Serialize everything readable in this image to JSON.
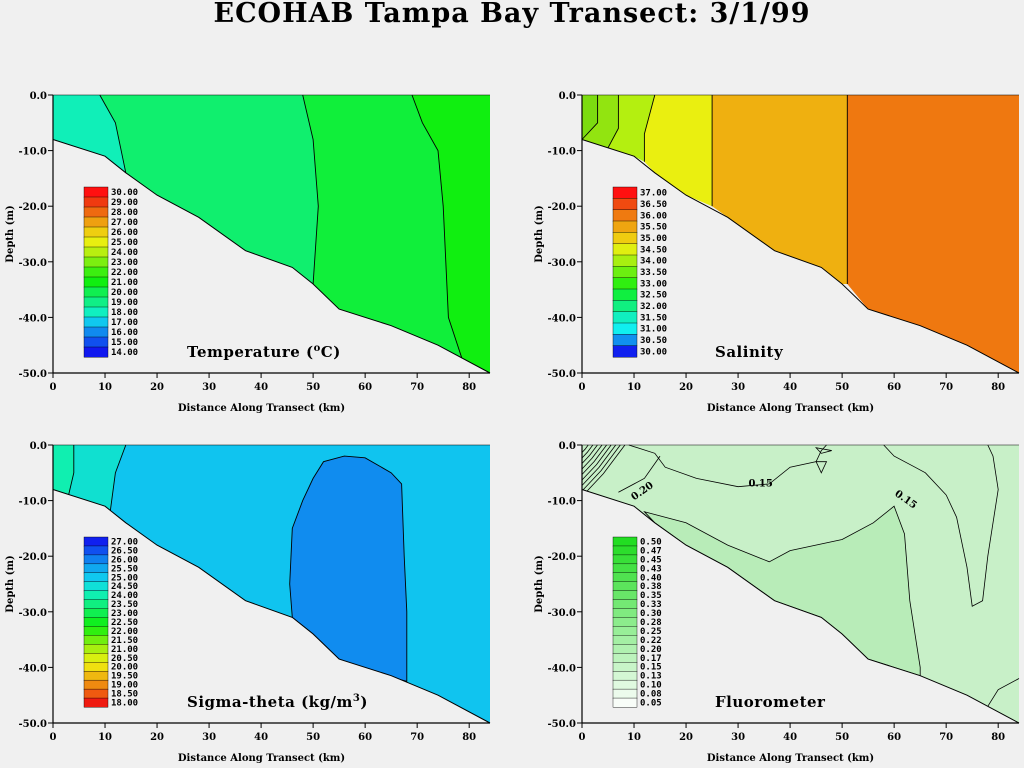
{
  "title": "ECOHAB Tampa Bay Transect: 3/1/99",
  "chart_data": [
    {
      "type": "heatmap",
      "title": "Temperature (oC)",
      "title_text": "Temperature (",
      "title_sup": "o",
      "title_tail": "C)",
      "xlabel": "Distance Along Transect (km)",
      "ylabel": "Depth (m)",
      "xlim": [
        0,
        84
      ],
      "ylim": [
        -50,
        0
      ],
      "x_ticks": [
        "0",
        "10",
        "20",
        "30",
        "40",
        "50",
        "60",
        "70",
        "80"
      ],
      "y_ticks": [
        "0.0",
        "-10.0",
        "-20.0",
        "-30.0",
        "-40.0",
        "-50.0"
      ],
      "levels": [
        "30.00",
        "29.00",
        "28.00",
        "27.00",
        "26.00",
        "25.00",
        "24.00",
        "23.00",
        "22.00",
        "21.00",
        "20.00",
        "19.00",
        "18.00",
        "17.00",
        "16.00",
        "15.00",
        "14.00"
      ],
      "level_colors": [
        "#ff1010",
        "#f03a10",
        "#ef6a10",
        "#efa010",
        "#efce10",
        "#e8ef10",
        "#b8ef10",
        "#7cef10",
        "#3cef10",
        "#10ef10",
        "#10ef50",
        "#10ef86",
        "#10efc0",
        "#10c8ef",
        "#108aef",
        "#1050ef",
        "#1018ef"
      ],
      "regions": [
        {
          "level": "19.00",
          "color": "#10efb8",
          "x_range": [
            0,
            14
          ]
        },
        {
          "level": "20.00",
          "color": "#10ef6e",
          "x_range": [
            14,
            50
          ]
        },
        {
          "level": "21.00",
          "color": "#10ef3a",
          "x_range": [
            50,
            73
          ]
        },
        {
          "level": "22.00",
          "color": "#10ef10",
          "x_range": [
            73,
            84
          ]
        }
      ]
    },
    {
      "type": "heatmap",
      "title": "Salinity",
      "xlabel": "Distance Along Transect (km)",
      "ylabel": "Depth (m)",
      "xlim": [
        0,
        84
      ],
      "ylim": [
        -50,
        0
      ],
      "x_ticks": [
        "0",
        "10",
        "20",
        "30",
        "40",
        "50",
        "60",
        "70",
        "80"
      ],
      "y_ticks": [
        "0.0",
        "-10.0",
        "-20.0",
        "-30.0",
        "-40.0",
        "-50.0"
      ],
      "levels": [
        "37.00",
        "36.50",
        "36.00",
        "35.50",
        "35.00",
        "34.50",
        "34.00",
        "33.50",
        "33.00",
        "32.50",
        "32.00",
        "31.50",
        "31.00",
        "30.50",
        "30.00"
      ],
      "level_colors": [
        "#ff1010",
        "#f04a10",
        "#ef7a10",
        "#efa510",
        "#efcc10",
        "#e0ef10",
        "#a8ef10",
        "#6cef10",
        "#30ef10",
        "#10ef40",
        "#10ef80",
        "#10efc0",
        "#10efef",
        "#1090ef",
        "#1020ef"
      ],
      "regions": [
        {
          "level": "33.50",
          "color": "#7cdc10",
          "x_range": [
            0,
            3
          ]
        },
        {
          "level": "34.00",
          "color": "#92e410",
          "x_range": [
            3,
            7
          ]
        },
        {
          "level": "34.50",
          "color": "#b4ef10",
          "x_range": [
            7,
            14
          ]
        },
        {
          "level": "35.00",
          "color": "#eaef10",
          "x_range": [
            14,
            25
          ]
        },
        {
          "level": "35.50",
          "color": "#efb010",
          "x_range": [
            25,
            51
          ]
        },
        {
          "level": "36.00",
          "color": "#ef7810",
          "x_range": [
            51,
            84
          ]
        }
      ]
    },
    {
      "type": "heatmap",
      "title": "Sigma-theta (kg/m3)",
      "title_text": "Sigma-theta  (kg/m",
      "title_sup": "3",
      "title_tail": ")",
      "xlabel": "Distance Along Transect (km)",
      "ylabel": "Depth (m)",
      "xlim": [
        0,
        84
      ],
      "ylim": [
        -50,
        0
      ],
      "x_ticks": [
        "0",
        "10",
        "20",
        "30",
        "40",
        "50",
        "60",
        "70",
        "80"
      ],
      "y_ticks": [
        "0.0",
        "-10.0",
        "-20.0",
        "-30.0",
        "-40.0",
        "-50.0"
      ],
      "levels": [
        "27.00",
        "26.50",
        "26.00",
        "25.50",
        "25.00",
        "24.50",
        "24.00",
        "23.50",
        "23.00",
        "22.50",
        "22.00",
        "21.50",
        "21.00",
        "20.50",
        "20.00",
        "19.50",
        "19.00",
        "18.50",
        "18.00"
      ],
      "level_colors": [
        "#1020ef",
        "#1050ef",
        "#1080ef",
        "#10a8ef",
        "#10c8ef",
        "#10e0d8",
        "#10efb0",
        "#10ef80",
        "#10ef50",
        "#10ef20",
        "#30ef10",
        "#70ef10",
        "#a8ef10",
        "#d8ef10",
        "#efe010",
        "#efb810",
        "#ef8a10",
        "#ef5a10",
        "#ef1a10"
      ],
      "regions": [
        {
          "level": "24.00",
          "color": "#10efb0",
          "x_range": [
            0,
            4
          ]
        },
        {
          "level": "24.50",
          "color": "#10e0d0",
          "x_range": [
            4,
            14
          ]
        },
        {
          "level": "25.00",
          "color": "#10c4ef",
          "x_range": [
            14,
            84
          ]
        },
        {
          "level": "25.50",
          "color": "#108cef",
          "x_range": [
            45,
            68
          ]
        }
      ]
    },
    {
      "type": "heatmap",
      "title": "Fluorometer",
      "xlabel": "Distance Along Transect (km)",
      "ylabel": "Depth (m)",
      "xlim": [
        0,
        84
      ],
      "ylim": [
        -50,
        0
      ],
      "x_ticks": [
        "0",
        "10",
        "20",
        "30",
        "40",
        "50",
        "60",
        "70",
        "80"
      ],
      "y_ticks": [
        "0.0",
        "-10.0",
        "-20.0",
        "-30.0",
        "-40.0",
        "-50.0"
      ],
      "levels": [
        "0.50",
        "0.47",
        "0.45",
        "0.43",
        "0.40",
        "0.38",
        "0.35",
        "0.33",
        "0.30",
        "0.28",
        "0.25",
        "0.22",
        "0.20",
        "0.17",
        "0.15",
        "0.13",
        "0.10",
        "0.08",
        "0.05"
      ],
      "level_colors": [
        "#22dd22",
        "#2cdd2c",
        "#38df38",
        "#44e144",
        "#50e250",
        "#5ce45c",
        "#68e668",
        "#74e874",
        "#80ea80",
        "#8cec8c",
        "#98ee98",
        "#a4efa4",
        "#b0f1b0",
        "#bcf3bc",
        "#c8f5c8",
        "#d4f7d4",
        "#e0f9e0",
        "#ecfbec",
        "#f8fdf8"
      ],
      "contour_labels": [
        "0.15",
        "0.15",
        "0.20"
      ],
      "regions": [
        {
          "level": "0.15",
          "color": "#c8f0c8",
          "x_range": [
            10,
            84
          ]
        },
        {
          "level": "0.17",
          "color": "#b8ecb8",
          "x_range": [
            12,
            74
          ]
        }
      ]
    }
  ]
}
